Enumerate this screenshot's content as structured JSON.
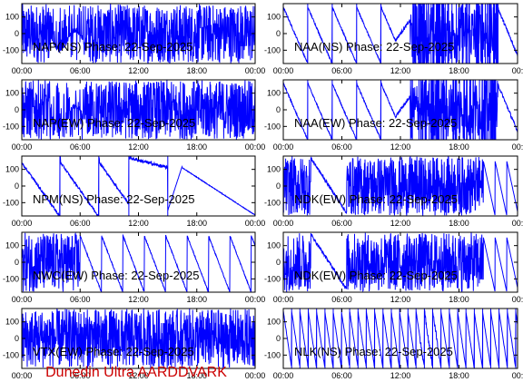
{
  "footer_text": "Dunedin Ultra AARDDVARK",
  "colors": {
    "trace": "#0000ff",
    "axis": "#000000",
    "footer": "#cc0000"
  },
  "chart_data": [
    {
      "type": "line",
      "title": "NAP(NS) Phase: 22-Sep-2025",
      "pattern": "dense",
      "column": "left",
      "row": 1,
      "xticks": [
        "00:00",
        "06:00",
        "12:00",
        "18:00",
        "00:00"
      ],
      "yticks": [
        100,
        0,
        -100
      ],
      "ylim": [
        -180,
        180
      ],
      "xlim_hours": [
        0,
        24
      ]
    },
    {
      "type": "line",
      "title": "NAA(NS) Phase: 22-Sep-2025",
      "pattern": "sawtooth-then-dense",
      "column": "right",
      "row": 1,
      "xticks": [
        "00:00",
        "06:00",
        "12:00",
        "18:00",
        "00:"
      ],
      "yticks": [
        100,
        0,
        -100
      ],
      "ylim": [
        -180,
        180
      ],
      "xlim_hours": [
        0,
        24
      ]
    },
    {
      "type": "line",
      "title": "NAP(EW) Phase: 22-Sep-2025",
      "pattern": "dense",
      "column": "left",
      "row": 2,
      "xticks": [
        "00:00",
        "06:00",
        "12:00",
        "18:00",
        "00:00"
      ],
      "yticks": [
        100,
        0,
        -100
      ],
      "ylim": [
        -180,
        180
      ],
      "xlim_hours": [
        0,
        24
      ]
    },
    {
      "type": "line",
      "title": "NAA(EW) Phase: 22-Sep-2025",
      "pattern": "sawtooth-then-dense",
      "column": "right",
      "row": 2,
      "xticks": [
        "00:00",
        "06:00",
        "12:00",
        "18:00",
        "00:"
      ],
      "yticks": [
        100,
        0,
        -100
      ],
      "ylim": [
        -180,
        180
      ],
      "xlim_hours": [
        0,
        24
      ]
    },
    {
      "type": "line",
      "title": "NPM(NS) Phase: 22-Sep-2025",
      "pattern": "slow-ramp",
      "column": "left",
      "row": 3,
      "xticks": [
        "00:00",
        "06:00",
        "12:00",
        "18:00",
        "00:00"
      ],
      "yticks": [
        100,
        0,
        -100
      ],
      "ylim": [
        -180,
        180
      ],
      "xlim_hours": [
        0,
        24
      ]
    },
    {
      "type": "line",
      "title": "NDK(EW) Phase: 22-Sep-2025",
      "pattern": "dense-with-gap",
      "column": "right",
      "row": 3,
      "xticks": [
        "00:00",
        "06:00",
        "12:00",
        "18:00",
        "00:"
      ],
      "yticks": [
        100,
        0,
        -100
      ],
      "ylim": [
        -180,
        180
      ],
      "xlim_hours": [
        0,
        24
      ]
    },
    {
      "type": "line",
      "title": "NWC(EW) Phase: 22-Sep-2025",
      "pattern": "dense-then-sawtooth",
      "column": "left",
      "row": 4,
      "xticks": [
        "00:00",
        "06:00",
        "12:00",
        "18:00",
        "00:00"
      ],
      "yticks": [
        100,
        0,
        -100
      ],
      "ylim": [
        -180,
        180
      ],
      "xlim_hours": [
        0,
        24
      ]
    },
    {
      "type": "line",
      "title": "NDK(EW) Phase: 22-Sep-2025",
      "pattern": "dense-with-gap",
      "column": "right",
      "row": 4,
      "xticks": [
        "00:00",
        "06:00",
        "12:00",
        "18:00",
        "00:"
      ],
      "yticks": [
        100,
        0,
        -100
      ],
      "ylim": [
        -180,
        180
      ],
      "xlim_hours": [
        0,
        24
      ]
    },
    {
      "type": "line",
      "title": "VTX(EW) Phase: 22-Sep-2025",
      "pattern": "dense-full",
      "column": "left",
      "row": 5,
      "xticks": [
        "00:00",
        "06:00",
        "12:00",
        "18:00",
        "00:00"
      ],
      "yticks": [
        100,
        0,
        -100
      ],
      "ylim": [
        -180,
        180
      ],
      "xlim_hours": [
        0,
        24
      ]
    },
    {
      "type": "line",
      "title": "NLK(NS) Phase: 22-Sep-2025",
      "pattern": "regular-sawtooth",
      "column": "right",
      "row": 5,
      "xticks": [
        "00:00",
        "06:00",
        "12:00",
        "18:00",
        "00:"
      ],
      "yticks": [
        100,
        0,
        -100
      ],
      "ylim": [
        -180,
        180
      ],
      "xlim_hours": [
        0,
        24
      ]
    }
  ]
}
